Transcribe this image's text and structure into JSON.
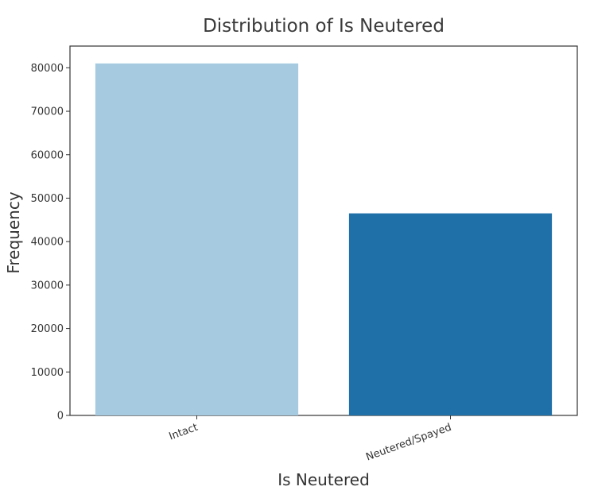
{
  "chart_data": {
    "type": "bar",
    "title": "Distribution of Is Neutered",
    "xlabel": "Is Neutered",
    "ylabel": "Frequency",
    "categories": [
      "Intact",
      "Neutered/Spayed"
    ],
    "values": [
      81000,
      46500
    ],
    "colors": [
      "#a6cbe0",
      "#1f6fa8"
    ],
    "ylim": [
      0,
      85000
    ],
    "yticks": [
      0,
      10000,
      20000,
      30000,
      40000,
      50000,
      60000,
      70000,
      80000
    ],
    "grid": false,
    "legend": "none"
  }
}
